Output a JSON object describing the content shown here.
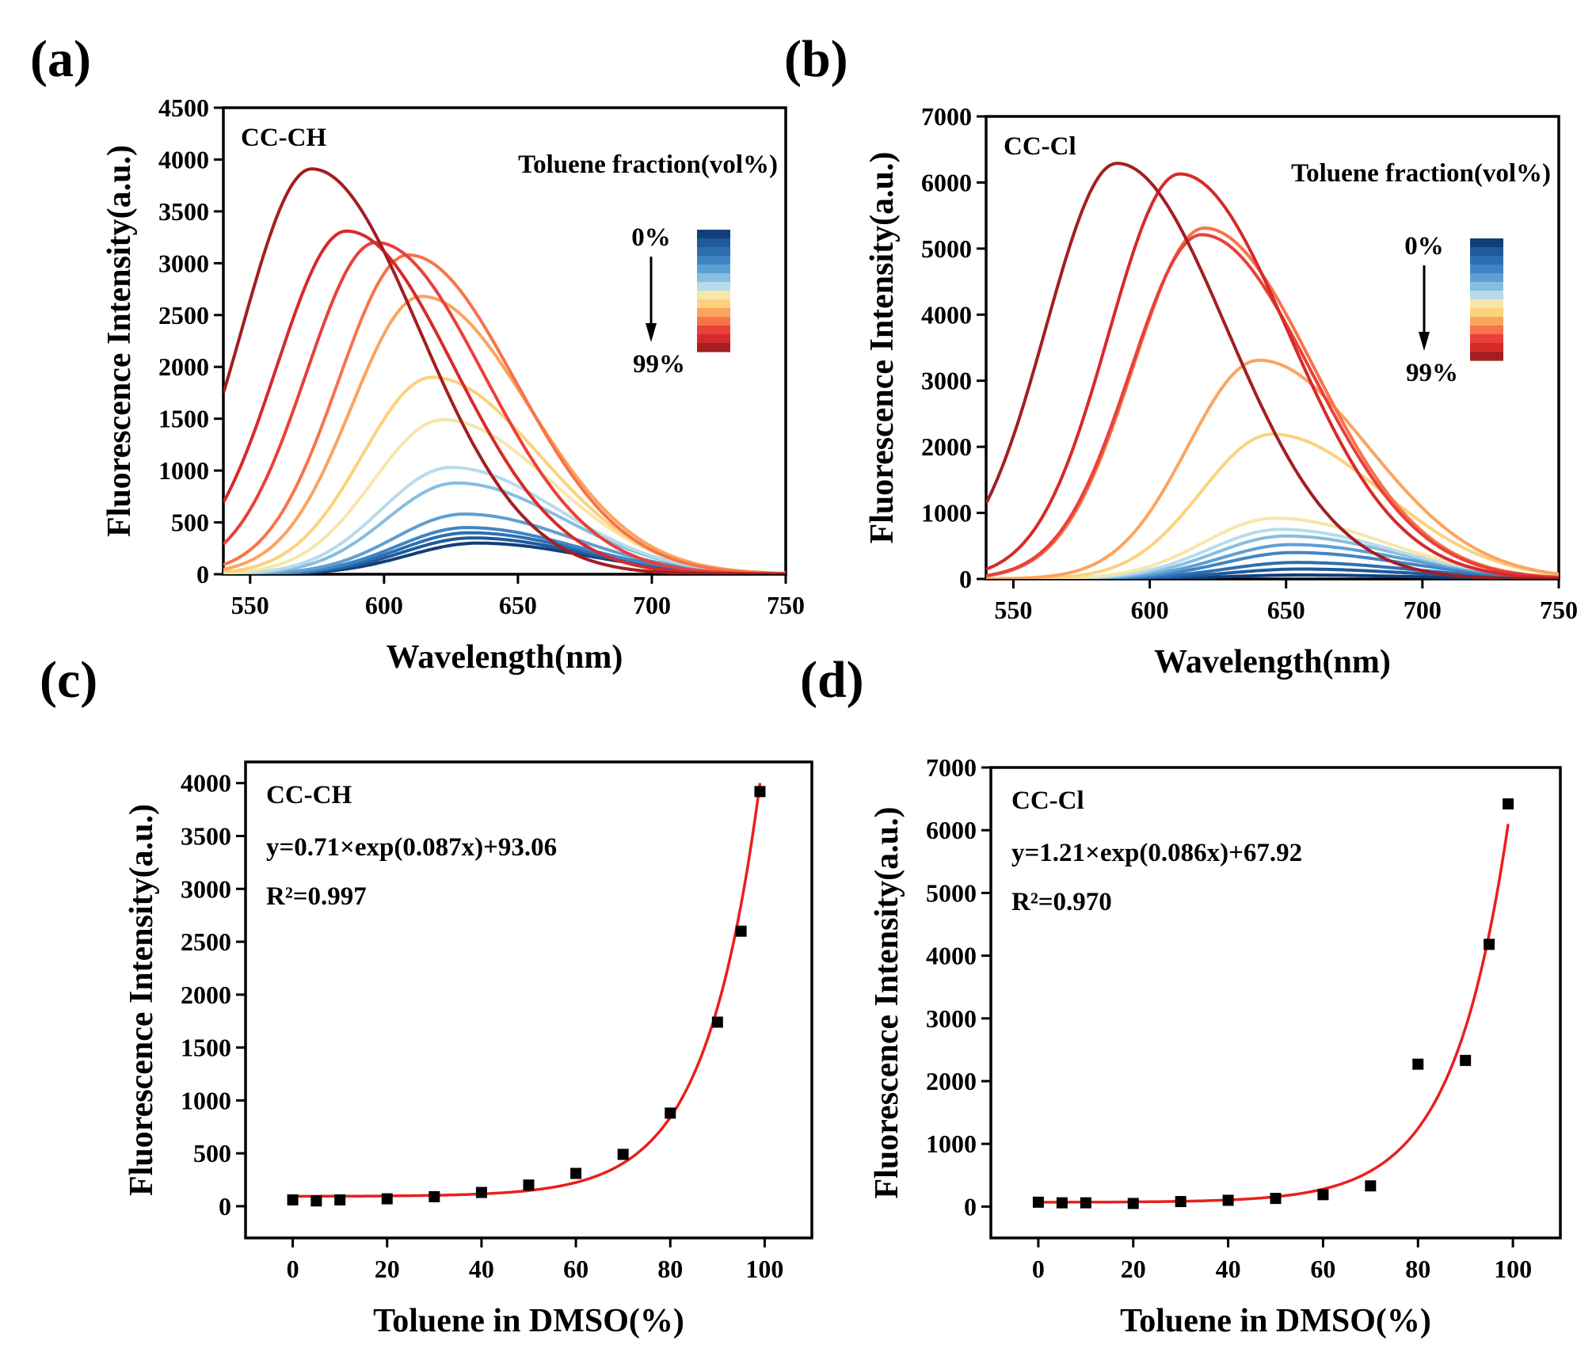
{
  "panel_labels": [
    "(a)",
    "(b)",
    "(c)",
    "(d)"
  ],
  "chart_data": [
    {
      "type": "line",
      "panel": "(a)",
      "annotation": "CC-CH",
      "xlabel": "Wavelength(nm)",
      "ylabel": "Fluorescence Intensity(a.u.)",
      "xlim": [
        540,
        750
      ],
      "ylim": [
        0,
        4500
      ],
      "xticks": [
        550,
        600,
        650,
        700,
        750
      ],
      "yticks": [
        0,
        500,
        1000,
        1500,
        2000,
        2500,
        3000,
        3500,
        4000,
        4500
      ],
      "legend": {
        "title": "Toluene fraction(vol%)",
        "top_label": "0%",
        "bottom_label": "99%",
        "placement": "top-right"
      },
      "series": [
        {
          "peak_x": 635,
          "peak_y": 300,
          "color": "#123f7a"
        },
        {
          "peak_x": 633,
          "peak_y": 350,
          "color": "#1f5a9a"
        },
        {
          "peak_x": 632,
          "peak_y": 400,
          "color": "#2c6fb1"
        },
        {
          "peak_x": 631,
          "peak_y": 450,
          "color": "#3f85c4"
        },
        {
          "peak_x": 630,
          "peak_y": 580,
          "color": "#5e9fd3"
        },
        {
          "peak_x": 627,
          "peak_y": 880,
          "color": "#86bee0"
        },
        {
          "peak_x": 625,
          "peak_y": 1030,
          "color": "#b7dbea"
        },
        {
          "peak_x": 622,
          "peak_y": 1490,
          "color": "#f7e6a9"
        },
        {
          "peak_x": 618,
          "peak_y": 1900,
          "color": "#fcd27c"
        },
        {
          "peak_x": 614,
          "peak_y": 2680,
          "color": "#fba45e"
        },
        {
          "peak_x": 609,
          "peak_y": 3080,
          "color": "#f7744a"
        },
        {
          "peak_x": 597,
          "peak_y": 3200,
          "color": "#e8413a"
        },
        {
          "peak_x": 586,
          "peak_y": 3310,
          "color": "#d62a2a"
        },
        {
          "peak_x": 573,
          "peak_y": 3910,
          "color": "#a31e22"
        }
      ]
    },
    {
      "type": "line",
      "panel": "(b)",
      "annotation": "CC-Cl",
      "xlabel": "Wavelength(nm)",
      "ylabel": "Fluorescence Intensity(a.u.)",
      "xlim": [
        540,
        750
      ],
      "ylim": [
        0,
        7000
      ],
      "xticks": [
        550,
        600,
        650,
        700,
        750
      ],
      "yticks": [
        0,
        1000,
        2000,
        3000,
        4000,
        5000,
        6000,
        7000
      ],
      "legend": {
        "title": "Toluene fraction(vol%)",
        "top_label": "0%",
        "bottom_label": "99%",
        "placement": "top-right"
      },
      "series": [
        {
          "peak_x": 655,
          "peak_y": 60,
          "color": "#123f7a"
        },
        {
          "peak_x": 655,
          "peak_y": 150,
          "color": "#1f5a9a"
        },
        {
          "peak_x": 654,
          "peak_y": 250,
          "color": "#2c6fb1"
        },
        {
          "peak_x": 653,
          "peak_y": 400,
          "color": "#3f85c4"
        },
        {
          "peak_x": 652,
          "peak_y": 520,
          "color": "#5e9fd3"
        },
        {
          "peak_x": 650,
          "peak_y": 650,
          "color": "#86bee0"
        },
        {
          "peak_x": 648,
          "peak_y": 750,
          "color": "#b7dbea"
        },
        {
          "peak_x": 646,
          "peak_y": 920,
          "color": "#f7e6a9"
        },
        {
          "peak_x": 645,
          "peak_y": 2190,
          "color": "#fcd27c"
        },
        {
          "peak_x": 640,
          "peak_y": 3310,
          "color": "#fba45e"
        },
        {
          "peak_x": 620,
          "peak_y": 5310,
          "color": "#f7744a"
        },
        {
          "peak_x": 619,
          "peak_y": 5210,
          "color": "#e8413a"
        },
        {
          "peak_x": 611,
          "peak_y": 6130,
          "color": "#d62a2a"
        },
        {
          "peak_x": 588,
          "peak_y": 6290,
          "color": "#a31e22"
        }
      ]
    },
    {
      "type": "scatter",
      "panel": "(c)",
      "annotation": "CC-CH",
      "equation": "y=0.71×exp(0.087x)+93.06",
      "r2": "R²=0.997",
      "xlabel": "Toluene in DMSO(%)",
      "ylabel": "Fluorescence Intensity(a.u.)",
      "xlim": [
        -10,
        110
      ],
      "ylim": [
        -300,
        4200
      ],
      "xticks": [
        0,
        20,
        40,
        60,
        80,
        100
      ],
      "yticks": [
        0,
        500,
        1000,
        1500,
        2000,
        2500,
        3000,
        3500,
        4000
      ],
      "fit": {
        "a": 0.71,
        "b": 0.087,
        "c": 93.06,
        "x_range": [
          0,
          99
        ],
        "color": "#e8201c"
      },
      "x": [
        0,
        5,
        10,
        20,
        30,
        40,
        50,
        60,
        70,
        80,
        90,
        95,
        99
      ],
      "y": [
        60,
        50,
        60,
        70,
        90,
        130,
        200,
        310,
        490,
        880,
        1740,
        2600,
        3920
      ]
    },
    {
      "type": "scatter",
      "panel": "(d)",
      "annotation": "CC-Cl",
      "equation": "y=1.21×exp(0.086x)+67.92",
      "r2": "R²=0.970",
      "xlabel": "Toluene in DMSO(%)",
      "ylabel": "Fluorescence Intensity(a.u.)",
      "xlim": [
        -10,
        110
      ],
      "ylim": [
        -500,
        7000
      ],
      "xticks": [
        0,
        20,
        40,
        60,
        80,
        100
      ],
      "yticks": [
        0,
        1000,
        2000,
        3000,
        4000,
        5000,
        6000,
        7000
      ],
      "fit": {
        "a": 1.21,
        "b": 0.086,
        "c": 67.92,
        "x_range": [
          0,
          99
        ],
        "color": "#e8201c"
      },
      "x": [
        0,
        5,
        10,
        20,
        30,
        40,
        50,
        60,
        70,
        80,
        90,
        95,
        99
      ],
      "y": [
        70,
        60,
        60,
        50,
        80,
        100,
        130,
        190,
        330,
        2270,
        2330,
        4180,
        6420
      ]
    }
  ]
}
